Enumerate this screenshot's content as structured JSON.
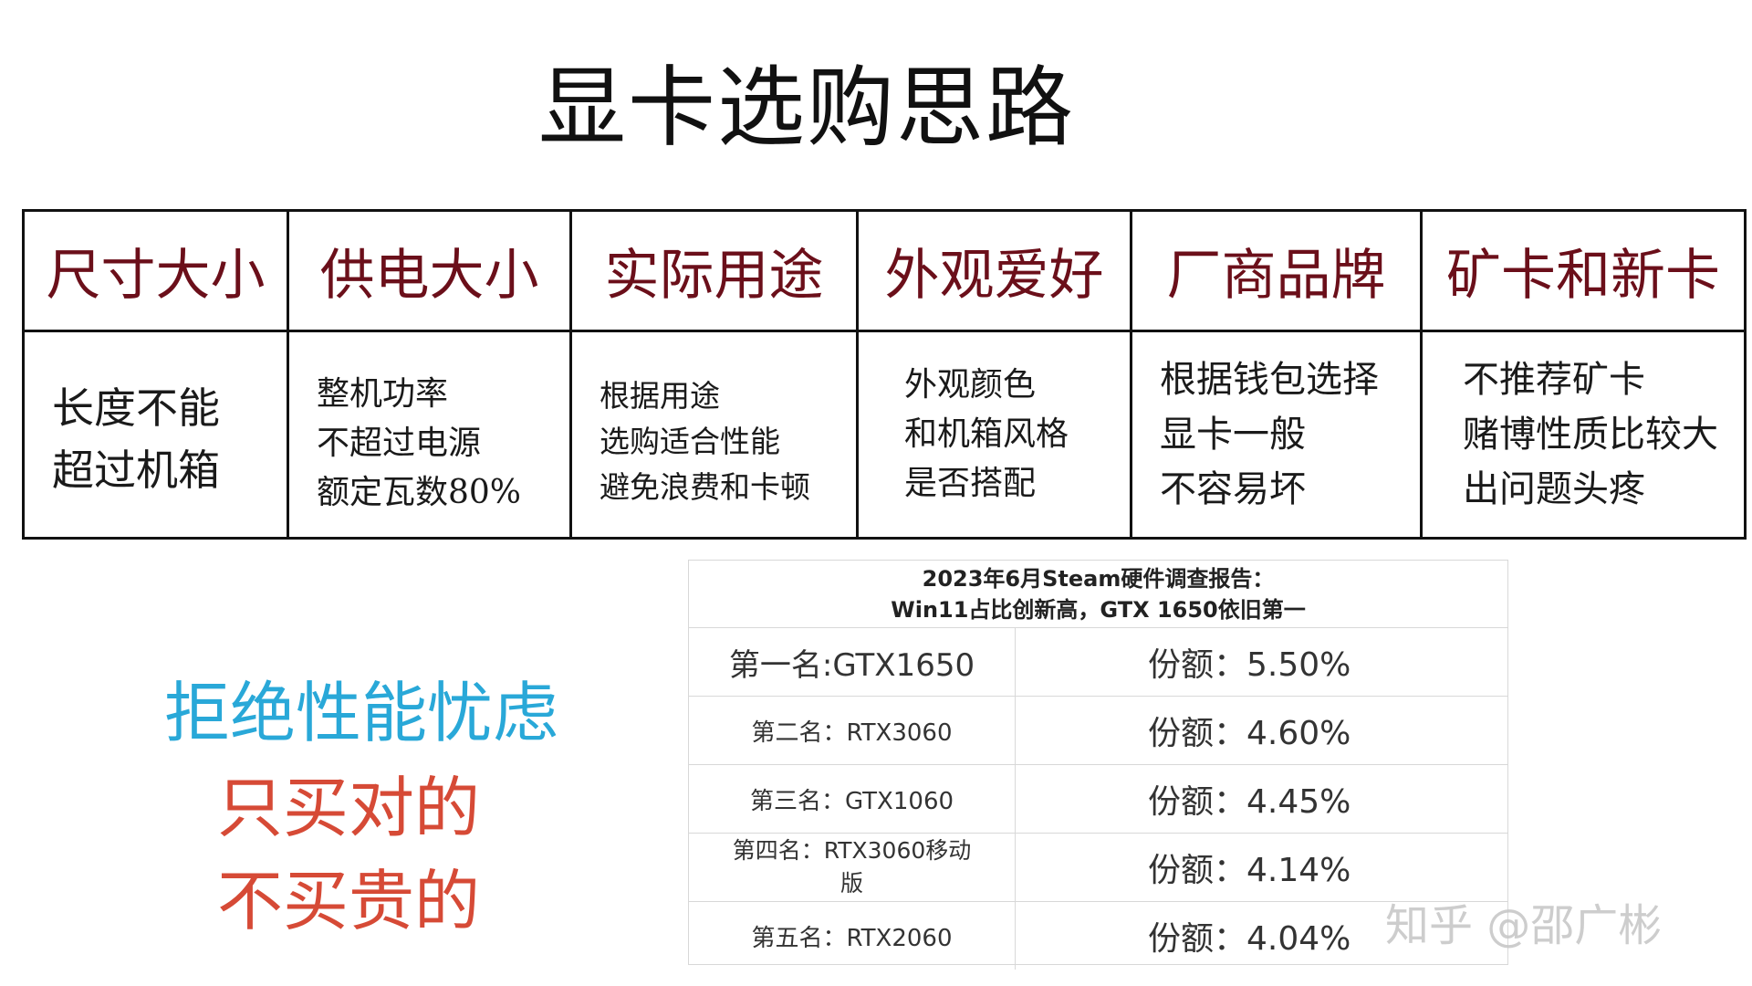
{
  "title": "显卡选购思路",
  "criteria": [
    {
      "header": "尺寸大小",
      "lines": [
        "长度不能",
        "超过机箱"
      ]
    },
    {
      "header": "供电大小",
      "lines": [
        "整机功率",
        "不超过电源",
        "额定瓦数80%"
      ]
    },
    {
      "header": "实际用途",
      "lines": [
        "根据用途",
        "选购适合性能",
        "避免浪费和卡顿"
      ]
    },
    {
      "header": "外观爱好",
      "lines": [
        "外观颜色",
        "和机箱风格",
        "是否搭配"
      ]
    },
    {
      "header": "厂商品牌",
      "lines": [
        "根据钱包选择",
        "显卡一般",
        "不容易坏"
      ]
    },
    {
      "header": "矿卡和新卡",
      "lines": [
        "不推荐矿卡",
        "赌博性质比较大",
        "出问题头疼"
      ]
    }
  ],
  "slogans": {
    "line1": "拒绝性能忧虑",
    "line2": "只买对的",
    "line3": "不买贵的"
  },
  "steam_report": {
    "title_line1": "2023年6月Steam硬件调查报告：",
    "title_line2": "Win11占比创新高，GTX 1650依旧第一",
    "rows": [
      {
        "rank": "第一名:GTX1650",
        "share": "份额：5.50%"
      },
      {
        "rank": "第二名：RTX3060",
        "share": "份额：4.60%"
      },
      {
        "rank": "第三名：GTX1060",
        "share": "份额：4.45%"
      },
      {
        "rank": "第四名：RTX3060移动版",
        "share": "份额：4.14%"
      },
      {
        "rank": "第五名：RTX2060",
        "share": "份额：4.04%"
      }
    ]
  },
  "watermark": "知乎 @邵广彬",
  "colors": {
    "header_text": "#6b0f1a",
    "slogan_blue": "#29a8d8",
    "slogan_red": "#d64a36"
  }
}
